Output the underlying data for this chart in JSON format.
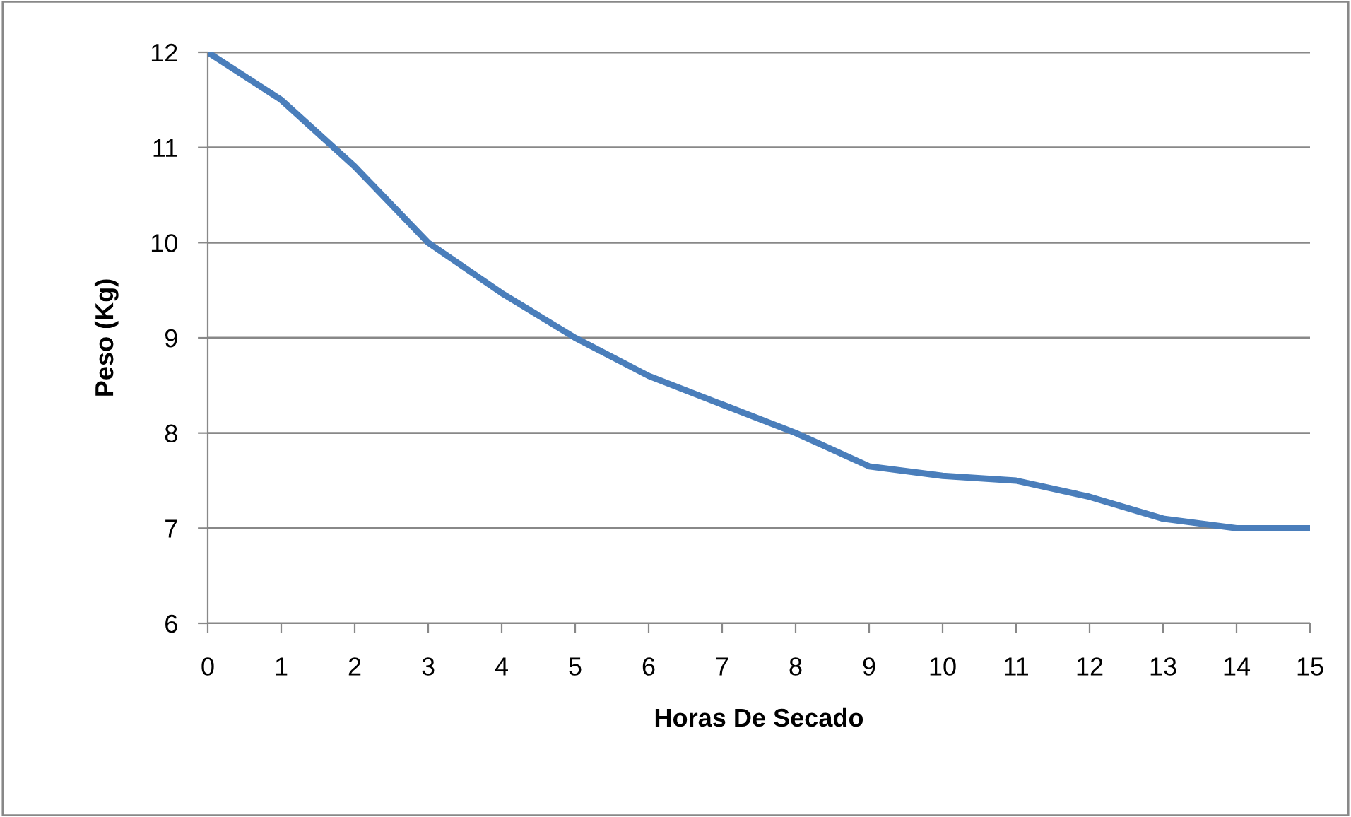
{
  "chart_data": {
    "type": "line",
    "xlabel": "Horas De Secado",
    "ylabel": "Peso (Kg)",
    "x": [
      0,
      1,
      2,
      3,
      4,
      5,
      6,
      7,
      8,
      9,
      10,
      11,
      12,
      13,
      14,
      15
    ],
    "series": [
      {
        "color": "#4a7ebb",
        "values": [
          12,
          11.5,
          10.8,
          10.0,
          9.47,
          9.0,
          8.6,
          8.3,
          8.0,
          7.65,
          7.55,
          7.5,
          7.33,
          7.1,
          7.0,
          7.0
        ]
      }
    ],
    "xlim": [
      0,
      15
    ],
    "xticks": [
      0,
      1,
      2,
      3,
      4,
      5,
      6,
      7,
      8,
      9,
      10,
      11,
      12,
      13,
      14,
      15
    ],
    "ylim": [
      6,
      12
    ],
    "yticks": [
      6,
      7,
      8,
      9,
      10,
      11,
      12
    ],
    "grid": "y",
    "legend": false,
    "marker": "none",
    "line_style": "solid"
  }
}
